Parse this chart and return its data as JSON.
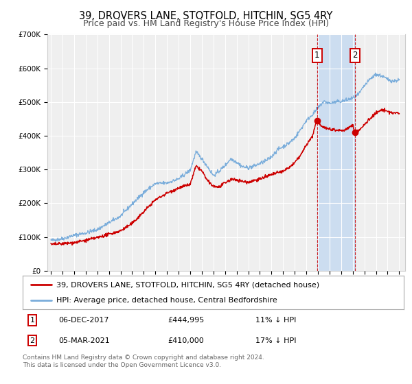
{
  "title": "39, DROVERS LANE, STOTFOLD, HITCHIN, SG5 4RY",
  "subtitle": "Price paid vs. HM Land Registry's House Price Index (HPI)",
  "ylim": [
    0,
    700000
  ],
  "yticks": [
    0,
    100000,
    200000,
    300000,
    400000,
    500000,
    600000,
    700000
  ],
  "ytick_labels": [
    "£0",
    "£100K",
    "£200K",
    "£300K",
    "£400K",
    "£500K",
    "£600K",
    "£700K"
  ],
  "xlim_start": 1994.7,
  "xlim_end": 2025.5,
  "background_color": "#ffffff",
  "plot_bg_color": "#efefef",
  "grid_color": "#ffffff",
  "red_line_color": "#cc0000",
  "blue_line_color": "#7aaddb",
  "vline1_color": "#cc0000",
  "vline2_color": "#cc0000",
  "span_color": "#ccddf0",
  "marker1_date": 2017.92,
  "marker1_value": 444995,
  "marker2_date": 2021.17,
  "marker2_value": 410000,
  "marker1_label": "06-DEC-2017",
  "marker1_price": "£444,995",
  "marker1_hpi": "11% ↓ HPI",
  "marker2_label": "05-MAR-2021",
  "marker2_price": "£410,000",
  "marker2_hpi": "17% ↓ HPI",
  "legend_label_red": "39, DROVERS LANE, STOTFOLD, HITCHIN, SG5 4RY (detached house)",
  "legend_label_blue": "HPI: Average price, detached house, Central Bedfordshire",
  "footer_line1": "Contains HM Land Registry data © Crown copyright and database right 2024.",
  "footer_line2": "This data is licensed under the Open Government Licence v3.0.",
  "title_fontsize": 10.5,
  "subtitle_fontsize": 9,
  "tick_fontsize": 7.5,
  "legend_fontsize": 8,
  "footer_fontsize": 6.5
}
